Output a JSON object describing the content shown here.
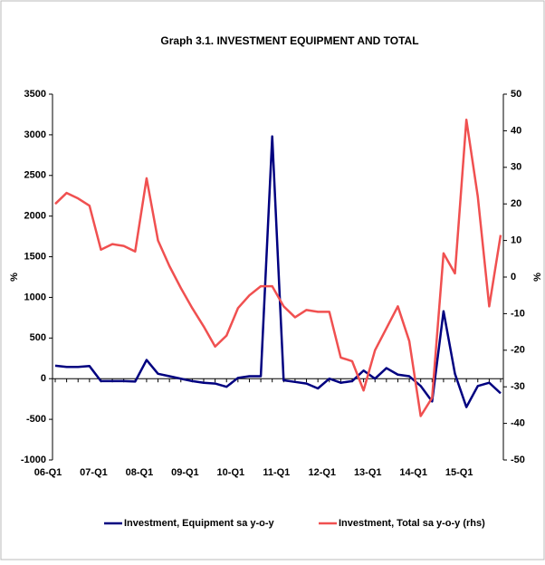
{
  "chart_data": {
    "type": "line",
    "title": "Graph 3.1. INVESTMENT EQUIPMENT AND TOTAL",
    "ylabel": "%",
    "y2label": "%",
    "categories": [
      "06-Q1",
      null,
      null,
      null,
      "07-Q1",
      null,
      null,
      null,
      "08-Q1",
      null,
      null,
      null,
      "09-Q1",
      null,
      null,
      null,
      "10-Q1",
      null,
      null,
      null,
      "11-Q1",
      null,
      null,
      null,
      "12-Q1",
      null,
      null,
      null,
      "13-Q1",
      null,
      null,
      null,
      "14-Q1",
      null,
      null,
      null,
      "15-Q1",
      null,
      null,
      null
    ],
    "series": [
      {
        "name": "Investment, Equipment sa y-o-y",
        "color": "#000080",
        "values": [
          160,
          145,
          145,
          155,
          -30,
          -30,
          -30,
          -35,
          230,
          60,
          30,
          0,
          -30,
          -50,
          -60,
          -100,
          10,
          30,
          30,
          2980,
          -20,
          -40,
          -60,
          -120,
          0,
          -50,
          -30,
          100,
          0,
          130,
          50,
          30,
          -90,
          -280,
          830,
          60,
          -350,
          -90,
          -50,
          -180
        ]
      },
      {
        "name": "Investment, Total sa y-o-y (rhs)",
        "color": "#f05050",
        "axis": "y2",
        "values": [
          20,
          23,
          21.5,
          19.5,
          7.5,
          9,
          8.5,
          7,
          27,
          10,
          3,
          -3,
          -8.5,
          -13.5,
          -19,
          -16,
          -8.5,
          -5,
          -2.5,
          -2.5,
          -8,
          -11,
          -9,
          -9.5,
          -9.5,
          -22,
          -23,
          -31,
          -20,
          -14,
          -8,
          -17.5,
          -38,
          -33,
          6.5,
          1,
          43,
          22,
          -8,
          11.5
        ]
      }
    ],
    "ylim": [
      -1000,
      3500
    ],
    "yticks": [
      -1000,
      -500,
      0,
      500,
      1000,
      1500,
      2000,
      2500,
      3000,
      3500
    ],
    "y2lim": [
      -50,
      50
    ],
    "y2ticks": [
      -50,
      -40,
      -30,
      -20,
      -10,
      0,
      10,
      20,
      30,
      40,
      50
    ],
    "legend": "bottom"
  }
}
